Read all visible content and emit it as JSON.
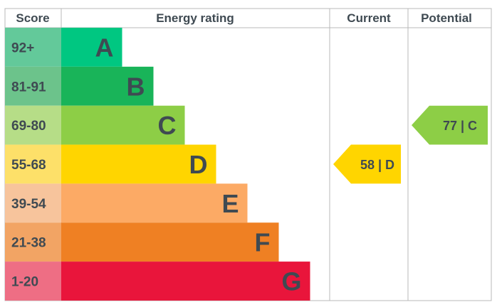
{
  "chart_data": {
    "type": "bar",
    "headers": {
      "score": "Score",
      "rating": "Energy rating",
      "current": "Current",
      "potential": "Potential"
    },
    "bands": [
      {
        "range": "92+",
        "letter": "A",
        "bar_color": "#00c781",
        "score_color": "#63c99a"
      },
      {
        "range": "81-91",
        "letter": "B",
        "bar_color": "#19b459",
        "score_color": "#6cc38b"
      },
      {
        "range": "69-80",
        "letter": "C",
        "bar_color": "#8dce46",
        "score_color": "#b6dd87"
      },
      {
        "range": "55-68",
        "letter": "D",
        "bar_color": "#ffd500",
        "score_color": "#fde069"
      },
      {
        "range": "39-54",
        "letter": "E",
        "bar_color": "#fcaa65",
        "score_color": "#f7c49c"
      },
      {
        "range": "21-38",
        "letter": "F",
        "bar_color": "#ef8023",
        "score_color": "#f2a464"
      },
      {
        "range": "1-20",
        "letter": "G",
        "bar_color": "#e9153b",
        "score_color": "#ee6e84"
      }
    ],
    "current": {
      "value": 58,
      "letter": "D",
      "label": "58 | D",
      "color": "#ffd500"
    },
    "potential": {
      "value": 77,
      "letter": "C",
      "label": "77 | C",
      "color": "#8dce46"
    }
  }
}
